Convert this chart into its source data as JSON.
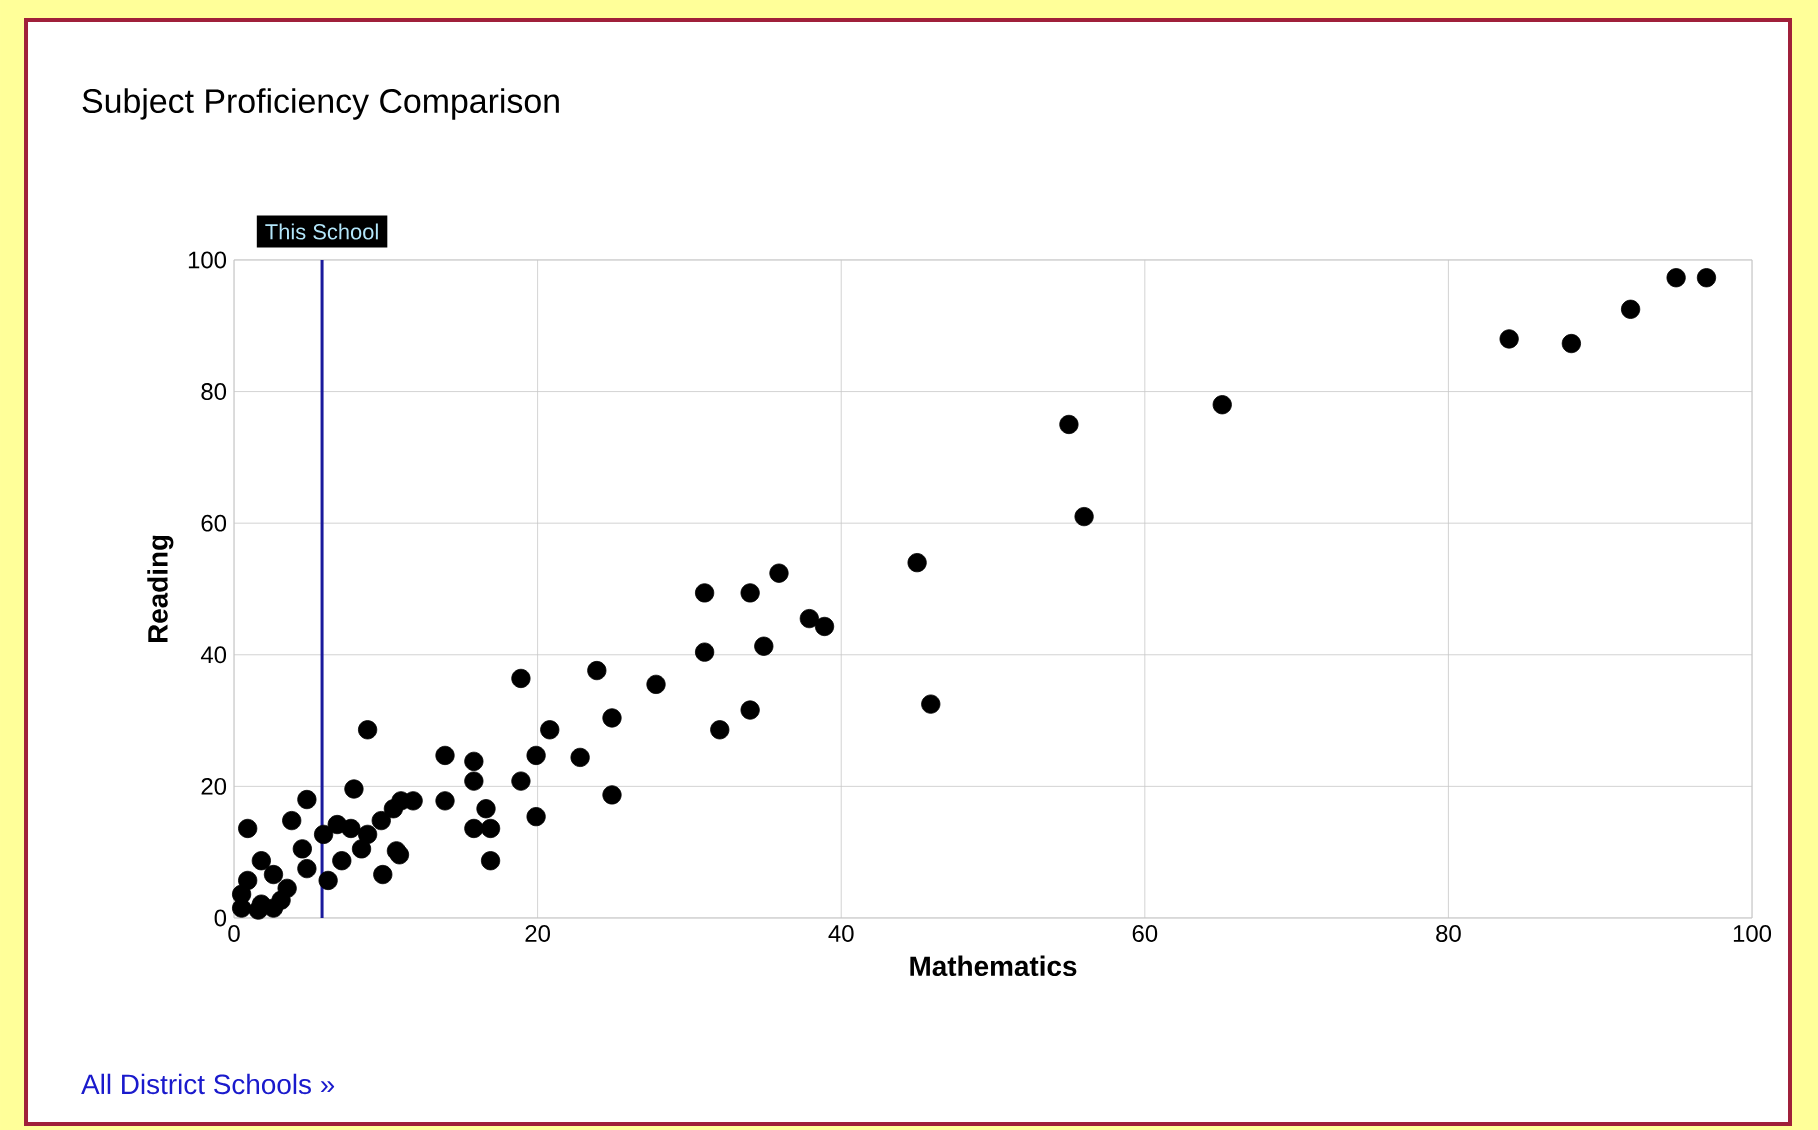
{
  "chart_data": {
    "type": "scatter",
    "title": "Subject Proficiency Comparison",
    "xlabel": "Mathematics",
    "ylabel": "Reading",
    "annotations": [
      "All District Schools »"
    ],
    "xlim": [
      0,
      100
    ],
    "ylim": [
      0,
      100
    ],
    "xticks": [
      0,
      20,
      40,
      60,
      80,
      100
    ],
    "yticks": [
      0,
      20,
      40,
      60,
      80,
      100
    ],
    "grid": true,
    "marker": "circle",
    "ref_lines": [
      {
        "axis": "x",
        "value": 5.8,
        "label": "This School",
        "color": "#1a1a9c"
      }
    ],
    "series": [
      {
        "color": "#000000",
        "x": [
          84,
          88.1,
          92,
          95,
          97,
          65.1,
          55,
          56,
          45,
          45.9,
          31,
          34,
          35.9,
          37.9,
          38.9,
          31,
          34.9,
          32,
          34,
          27.8,
          23.9,
          24.9,
          20.8,
          19.9,
          22.8,
          18.9,
          24.9,
          19.9,
          18.9,
          8.8,
          13.9,
          15.8,
          13.9,
          15.8,
          16.6,
          15.8,
          16.9,
          16.9,
          11,
          11.8,
          10.5,
          9.7,
          10.9,
          9.8,
          4.8,
          7.9,
          3.8,
          0.9,
          6.8,
          5.9,
          7.7,
          8.8,
          10.7,
          4.8,
          6.2,
          3.5,
          1.8,
          0.9,
          0.5,
          0.5,
          1.8,
          3.1,
          2.6,
          7.1,
          8.4,
          4.5,
          2.6,
          1.6
        ],
        "values": [
          88,
          87.3,
          92.5,
          97.3,
          97.3,
          78,
          75,
          61,
          54,
          32.5,
          49.4,
          49.4,
          52.4,
          45.5,
          44.3,
          40.4,
          41.3,
          28.6,
          31.6,
          35.5,
          37.6,
          30.4,
          28.6,
          24.7,
          24.4,
          36.4,
          18.7,
          15.4,
          20.8,
          28.6,
          24.7,
          23.8,
          17.8,
          20.8,
          16.6,
          13.6,
          13.6,
          8.7,
          17.8,
          17.8,
          16.6,
          14.8,
          9.6,
          6.6,
          18,
          19.6,
          14.8,
          13.6,
          14.2,
          12.7,
          13.6,
          12.7,
          10.2,
          7.5,
          5.7,
          4.5,
          8.7,
          5.7,
          3.6,
          1.5,
          2.1,
          2.7,
          6.6,
          8.7,
          10.5,
          10.5,
          1.5,
          1.2
        ]
      }
    ]
  }
}
